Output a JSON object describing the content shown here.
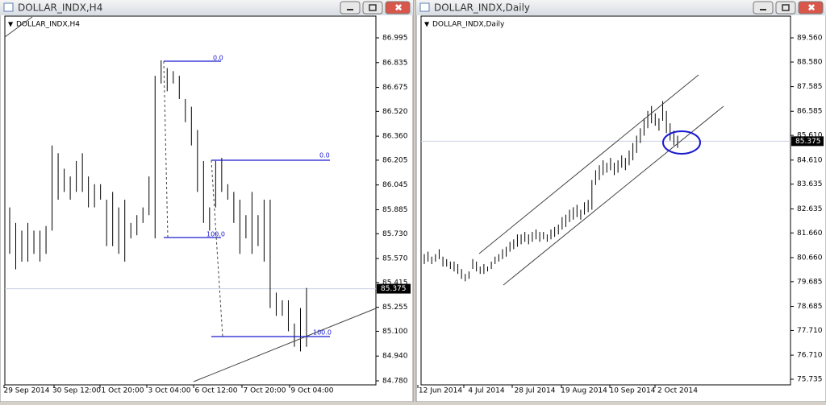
{
  "windows": [
    {
      "title": "DOLLAR_INDX,H4",
      "label": "DOLLAR_INDX,H4",
      "ylim": [
        84.78,
        86.995
      ],
      "yticks": [
        86.995,
        86.835,
        86.675,
        {
          "value": 86.52,
          "label": "86.520"
        },
        {
          "value": 86.36,
          "label": "86.360"
        },
        86.205,
        86.045,
        85.885,
        {
          "value": 85.73,
          "label": "85.730"
        },
        {
          "value": 85.57,
          "label": "85.570"
        },
        85.415,
        85.255,
        {
          "value": 85.1,
          "label": "85.100"
        },
        {
          "value": 84.94,
          "label": "84.940"
        },
        {
          "value": 84.78,
          "label": "84.780"
        }
      ],
      "price": 85.375,
      "xlabels": [
        "29 Sep 2014",
        "30 Sep 12:00",
        "1 Oct 20:00",
        "3 Oct 04:00",
        "6 Oct 12:00",
        "7 Oct 20:00",
        "9 Oct 04:00"
      ],
      "fibo": [
        "0.0",
        "100.0",
        "0.0",
        "100.0"
      ],
      "bars": [
        [
          85.6,
          85.9
        ],
        [
          85.5,
          85.8
        ],
        [
          85.55,
          85.75
        ],
        [
          85.55,
          85.8
        ],
        [
          85.6,
          85.75
        ],
        [
          85.55,
          85.75
        ],
        [
          85.6,
          85.78
        ],
        [
          85.75,
          86.3
        ],
        [
          85.95,
          86.25
        ],
        [
          86.0,
          86.15
        ],
        [
          85.95,
          86.1
        ],
        [
          86.0,
          86.2
        ],
        [
          86.0,
          86.25
        ],
        [
          85.9,
          86.1
        ],
        [
          85.9,
          86.05
        ],
        [
          85.95,
          86.05
        ],
        [
          85.65,
          85.95
        ],
        [
          85.65,
          86.0
        ],
        [
          85.6,
          85.9
        ],
        [
          85.55,
          85.95
        ],
        [
          85.7,
          85.8
        ],
        [
          85.72,
          85.85
        ],
        [
          85.8,
          85.9
        ],
        [
          85.85,
          86.1
        ],
        [
          85.7,
          86.75
        ],
        [
          86.7,
          86.85
        ],
        [
          86.65,
          86.8
        ],
        [
          86.7,
          86.78
        ],
        [
          86.6,
          86.75
        ],
        [
          86.45,
          86.6
        ],
        [
          86.3,
          86.55
        ],
        [
          86.0,
          86.4
        ],
        [
          85.8,
          86.2
        ],
        [
          85.75,
          85.9
        ],
        [
          85.9,
          86.2
        ],
        [
          86.0,
          86.22
        ],
        [
          85.95,
          86.05
        ],
        [
          85.8,
          86.0
        ],
        [
          85.6,
          85.95
        ],
        [
          85.7,
          85.85
        ],
        [
          85.6,
          86.0
        ],
        [
          85.65,
          85.85
        ],
        [
          85.55,
          85.95
        ],
        [
          85.25,
          85.95
        ],
        [
          85.2,
          85.35
        ],
        [
          85.2,
          85.3
        ],
        [
          85.1,
          85.3
        ],
        [
          85.0,
          85.15
        ],
        [
          84.97,
          85.25
        ],
        [
          85.0,
          85.38
        ]
      ]
    },
    {
      "title": "DOLLAR_INDX,Daily",
      "label": "DOLLAR_INDX,Daily",
      "ylim": [
        75.735,
        89.56
      ],
      "yticks": [
        {
          "value": 89.56,
          "label": "89.560"
        },
        {
          "value": 88.58,
          "label": "88.580"
        },
        87.585,
        86.585,
        {
          "value": 85.61,
          "label": "85.610"
        },
        {
          "value": 84.61,
          "label": "84.610"
        },
        83.635,
        82.635,
        {
          "value": 81.66,
          "label": "81.660"
        },
        {
          "value": 80.66,
          "label": "80.660"
        },
        79.685,
        78.685,
        {
          "value": 77.71,
          "label": "77.710"
        },
        {
          "value": 76.71,
          "label": "76.710"
        },
        75.735
      ],
      "price": 85.375,
      "xlabels": [
        "12 Jun 2014",
        "4 Jul 2014",
        "28 Jul 2014",
        "19 Aug 2014",
        "10 Sep 2014",
        "2 Oct 2014"
      ],
      "bars": [
        [
          80.4,
          80.8
        ],
        [
          80.5,
          80.9
        ],
        [
          80.4,
          80.7
        ],
        [
          80.5,
          80.8
        ],
        [
          80.6,
          81.0
        ],
        [
          80.3,
          80.7
        ],
        [
          80.3,
          80.6
        ],
        [
          80.2,
          80.5
        ],
        [
          80.1,
          80.5
        ],
        [
          80.0,
          80.4
        ],
        [
          79.8,
          80.2
        ],
        [
          79.7,
          80.0
        ],
        [
          79.8,
          80.1
        ],
        [
          80.2,
          80.6
        ],
        [
          80.1,
          80.5
        ],
        [
          80.0,
          80.3
        ],
        [
          80.0,
          80.4
        ],
        [
          80.1,
          80.3
        ],
        [
          80.2,
          80.5
        ],
        [
          80.4,
          80.7
        ],
        [
          80.5,
          80.8
        ],
        [
          80.6,
          81.0
        ],
        [
          80.7,
          81.1
        ],
        [
          80.9,
          81.3
        ],
        [
          81.0,
          81.4
        ],
        [
          81.1,
          81.6
        ],
        [
          81.2,
          81.6
        ],
        [
          81.3,
          81.7
        ],
        [
          81.2,
          81.6
        ],
        [
          81.3,
          81.7
        ],
        [
          81.4,
          81.8
        ],
        [
          81.3,
          81.7
        ],
        [
          81.4,
          81.7
        ],
        [
          81.3,
          81.6
        ],
        [
          81.4,
          81.8
        ],
        [
          81.5,
          81.9
        ],
        [
          81.6,
          82.0
        ],
        [
          81.8,
          82.3
        ],
        [
          81.9,
          82.4
        ],
        [
          82.1,
          82.6
        ],
        [
          82.2,
          82.7
        ],
        [
          82.3,
          82.8
        ],
        [
          82.2,
          82.6
        ],
        [
          82.4,
          82.9
        ],
        [
          82.5,
          83.0
        ],
        [
          82.6,
          83.8
        ],
        [
          83.6,
          84.2
        ],
        [
          83.8,
          84.4
        ],
        [
          84.0,
          84.6
        ],
        [
          84.1,
          84.5
        ],
        [
          84.2,
          84.7
        ],
        [
          84.0,
          84.5
        ],
        [
          84.1,
          84.6
        ],
        [
          84.3,
          84.8
        ],
        [
          84.2,
          84.7
        ],
        [
          84.4,
          85.0
        ],
        [
          84.6,
          85.3
        ],
        [
          84.9,
          85.6
        ],
        [
          85.3,
          85.9
        ],
        [
          85.6,
          86.3
        ],
        [
          85.9,
          86.6
        ],
        [
          86.1,
          86.8
        ],
        [
          86.0,
          86.5
        ],
        [
          85.8,
          86.3
        ],
        [
          86.2,
          87.0
        ],
        [
          85.7,
          86.6
        ],
        [
          85.4,
          86.1
        ],
        [
          85.2,
          85.8
        ],
        [
          85.1,
          85.6
        ]
      ]
    }
  ]
}
